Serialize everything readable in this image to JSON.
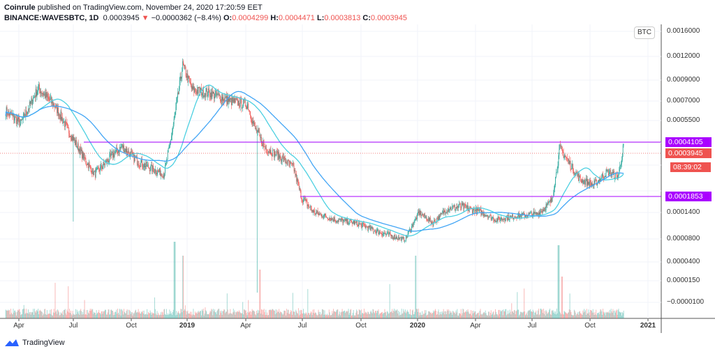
{
  "header": {
    "publisher": "Coinrule",
    "published_text": "published on TradingView.com, November 24, 2020 17:20:59 EET",
    "symbol": "BINANCE:WAVESBTC, 1D",
    "last": "0.0003945",
    "change": "−0.0000362 (−8.4%)",
    "o_label": "O:",
    "o": "0.0004299",
    "h_label": "H:",
    "h": "0.0004471",
    "l_label": "L:",
    "l": "0.0003813",
    "c_label": "C:",
    "c": "0.0003945"
  },
  "price_axis": {
    "currency": "BTC",
    "ticks": [
      "0.0016000",
      "0.0012000",
      "0.0009000",
      "0.0007000",
      "0.0005500",
      "0.0001400",
      "0.0000800",
      "0.0000400",
      "0.0000150",
      "−0.0000100"
    ],
    "level_high": "0.0004105",
    "last_price": "0.0003945",
    "countdown": "08:39:02",
    "level_low": "0.0001853"
  },
  "time_axis": [
    "Apr",
    "Jul",
    "Oct",
    "2019",
    "Apr",
    "Jul",
    "Oct",
    "2020",
    "Apr",
    "Jul",
    "Oct",
    "2021"
  ],
  "footer": {
    "brand": "TradingView"
  },
  "colors": {
    "up": "#26a69a",
    "down": "#ef5350",
    "ma_fast": "#4dd0e1",
    "ma_slow": "#42a5f5",
    "level": "#aa00ff",
    "last": "#ef5350"
  },
  "chart_data": {
    "type": "candlestick",
    "symbol": "WAVESBTC",
    "interval": "1D",
    "y_scale": "log",
    "levels": [
      0.0004105,
      0.0001853
    ],
    "approx_close_path": [
      [
        "2018-03-11",
        0.00062
      ],
      [
        "2018-04-04",
        0.00053
      ],
      [
        "2018-05-02",
        0.00082
      ],
      [
        "2018-05-30",
        0.00065
      ],
      [
        "2018-06-27",
        0.00043
      ],
      [
        "2018-07-31",
        0.00026
      ],
      [
        "2018-08-27",
        0.00034
      ],
      [
        "2018-09-13",
        0.00039
      ],
      [
        "2018-10-11",
        0.00031
      ],
      [
        "2018-11-19",
        0.00026
      ],
      [
        "2018-12-04",
        0.00052
      ],
      [
        "2018-12-19",
        0.00108
      ],
      [
        "2019-01-03",
        0.0008
      ],
      [
        "2019-01-31",
        0.00077
      ],
      [
        "2019-03-05",
        0.0007
      ],
      [
        "2019-04-02",
        0.00067
      ],
      [
        "2019-04-13",
        0.0005
      ],
      [
        "2019-04-30",
        0.00038
      ],
      [
        "2019-05-22",
        0.00034
      ],
      [
        "2019-06-14",
        0.00029
      ],
      [
        "2019-06-27",
        0.00018
      ],
      [
        "2019-07-17",
        0.00014
      ],
      [
        "2019-08-20",
        0.00012
      ],
      [
        "2019-09-22",
        0.000112
      ],
      [
        "2019-10-26",
        9.4e-05
      ],
      [
        "2019-12-09",
        7.8e-05
      ],
      [
        "2020-01-01",
        0.00014
      ],
      [
        "2020-01-23",
        0.000112
      ],
      [
        "2020-02-14",
        0.000148
      ],
      [
        "2020-03-08",
        0.000155
      ],
      [
        "2020-04-10",
        0.00014
      ],
      [
        "2020-05-03",
        0.00012
      ],
      [
        "2020-06-05",
        0.00013
      ],
      [
        "2020-07-09",
        0.000136
      ],
      [
        "2020-07-31",
        0.00017
      ],
      [
        "2020-08-13",
        0.00038
      ],
      [
        "2020-08-28",
        0.00031
      ],
      [
        "2020-09-14",
        0.00024
      ],
      [
        "2020-10-06",
        0.00022
      ],
      [
        "2020-10-28",
        0.00027
      ],
      [
        "2020-11-14",
        0.00025
      ],
      [
        "2020-11-23",
        0.0003945
      ]
    ]
  }
}
